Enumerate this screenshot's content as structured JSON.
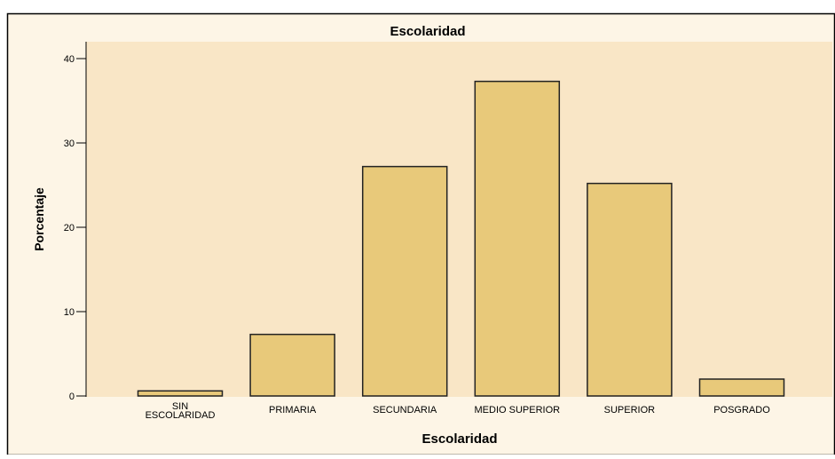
{
  "chart_data": {
    "type": "bar",
    "title": "Escolaridad",
    "x_label": "Escolaridad",
    "y_label": "Porcentaje",
    "categories": [
      "SIN ESCOLARIDAD",
      "PRIMARIA",
      "SECUNDARIA",
      "MEDIO SUPERIOR",
      "SUPERIOR",
      "POSGRADO"
    ],
    "values": [
      0.6,
      7.3,
      27.2,
      37.3,
      25.2,
      2.0
    ],
    "color": "#e8c97a",
    "ylim": [
      0,
      42
    ],
    "yticks": [
      0,
      10,
      20,
      30,
      40
    ],
    "grid": false
  }
}
